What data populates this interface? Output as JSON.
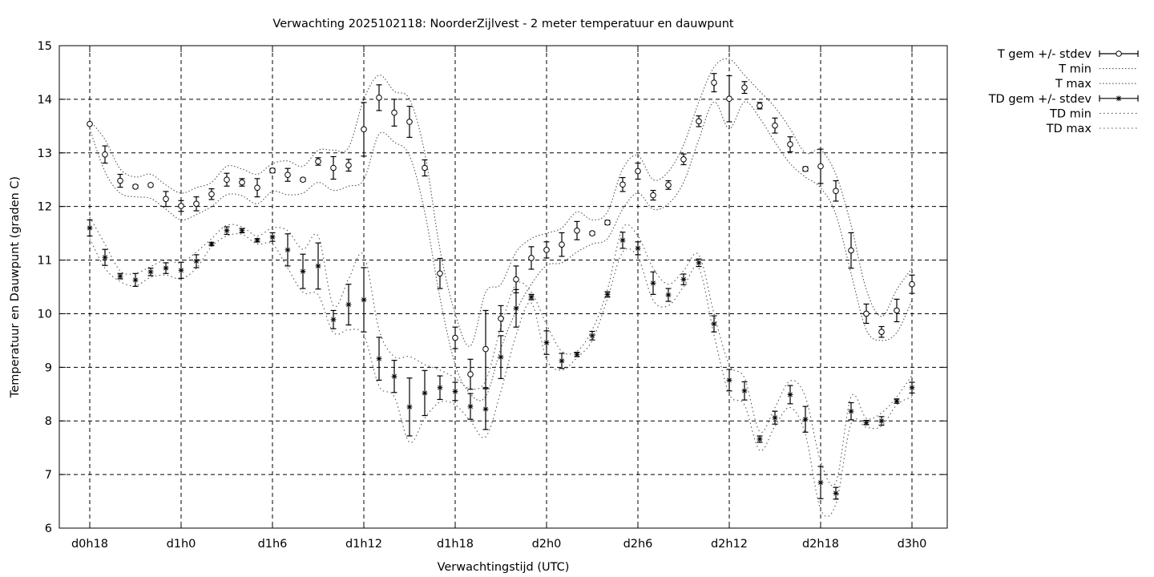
{
  "chart_data": {
    "type": "line",
    "title": "Verwachting 2025102118: NoorderZijlvest - 2 meter temperatuur en dauwpunt",
    "xlabel": "Verwachtingstijd (UTC)",
    "ylabel": "Temperatuur en Dauwpunt (graden C)",
    "xlim": [
      0,
      56.5
    ],
    "ylim": [
      6,
      15
    ],
    "x_unit": "hours since d0h18",
    "x_ticks": [
      {
        "x": 0,
        "label": "d0h18"
      },
      {
        "x": 6,
        "label": "d1h0"
      },
      {
        "x": 12,
        "label": "d1h6"
      },
      {
        "x": 18,
        "label": "d1h12"
      },
      {
        "x": 24,
        "label": "d1h18"
      },
      {
        "x": 30,
        "label": "d2h0"
      },
      {
        "x": 36,
        "label": "d2h6"
      },
      {
        "x": 42,
        "label": "d2h12"
      },
      {
        "x": 48,
        "label": "d2h18"
      },
      {
        "x": 54,
        "label": "d3h0"
      }
    ],
    "y_ticks": [
      6,
      7,
      8,
      9,
      10,
      11,
      12,
      13,
      14,
      15
    ],
    "grid": true,
    "legend_position": "outside-top-right",
    "x": [
      0,
      1,
      2,
      3,
      4,
      5,
      6,
      7,
      8,
      9,
      10,
      11,
      12,
      13,
      14,
      15,
      16,
      17,
      18,
      19,
      20,
      21,
      22,
      23,
      24,
      25,
      26,
      27,
      28,
      29,
      30,
      31,
      32,
      33,
      34,
      35,
      36,
      37,
      38,
      39,
      40,
      41,
      42,
      43,
      44,
      45,
      46,
      47,
      48,
      49,
      50,
      51,
      52,
      53,
      54
    ],
    "series": [
      {
        "name": "T gem +/- stdev",
        "marker": "open-circle",
        "mean": [
          13.54,
          12.97,
          12.48,
          12.37,
          12.4,
          12.14,
          12.01,
          12.05,
          12.23,
          12.5,
          12.45,
          12.35,
          12.67,
          12.59,
          12.5,
          12.84,
          12.72,
          12.77,
          13.44,
          14.03,
          13.75,
          13.58,
          12.72,
          10.75,
          9.55,
          8.87,
          9.34,
          9.91,
          10.64,
          11.04,
          11.19,
          11.29,
          11.55,
          11.5,
          11.7,
          12.41,
          12.66,
          12.21,
          12.4,
          12.88,
          13.59,
          14.31,
          14.01,
          14.22,
          13.88,
          13.51,
          13.16,
          12.7,
          12.75,
          12.29,
          11.18,
          10.0,
          9.66,
          10.06,
          10.55
        ],
        "stdev": [
          0.02,
          0.16,
          0.12,
          0.03,
          0.02,
          0.14,
          0.1,
          0.13,
          0.1,
          0.12,
          0.07,
          0.17,
          0.04,
          0.12,
          0.03,
          0.07,
          0.21,
          0.11,
          0.5,
          0.24,
          0.25,
          0.29,
          0.15,
          0.28,
          0.2,
          0.28,
          0.72,
          0.24,
          0.25,
          0.21,
          0.15,
          0.22,
          0.17,
          0.03,
          0.04,
          0.13,
          0.15,
          0.09,
          0.08,
          0.1,
          0.1,
          0.17,
          0.43,
          0.11,
          0.06,
          0.14,
          0.14,
          0.04,
          0.32,
          0.19,
          0.33,
          0.18,
          0.1,
          0.21,
          0.17
        ],
        "color": "#000000"
      },
      {
        "name": "T min",
        "style": "dotted",
        "values": [
          13.45,
          12.65,
          12.25,
          12.18,
          12.15,
          11.95,
          11.75,
          11.85,
          12.0,
          12.22,
          12.2,
          12.05,
          12.28,
          12.22,
          12.25,
          12.45,
          12.3,
          12.38,
          12.5,
          13.35,
          13.2,
          12.95,
          11.9,
          10.3,
          9.05,
          8.5,
          8.45,
          9.35,
          10.05,
          10.55,
          10.9,
          10.95,
          11.15,
          11.3,
          11.4,
          11.95,
          12.25,
          11.95,
          12.05,
          12.45,
          13.25,
          13.95,
          13.45,
          13.95,
          13.65,
          13.2,
          12.8,
          12.55,
          12.35,
          11.85,
          10.75,
          9.7,
          9.5,
          9.65,
          10.25
        ],
        "color": "#555555"
      },
      {
        "name": "T max",
        "style": "dotted",
        "values": [
          13.6,
          13.25,
          12.7,
          12.55,
          12.6,
          12.4,
          12.25,
          12.35,
          12.45,
          12.75,
          12.7,
          12.6,
          12.8,
          12.85,
          12.75,
          13.05,
          13.05,
          13.1,
          14.0,
          14.45,
          14.15,
          14.0,
          13.0,
          11.2,
          10.0,
          9.4,
          10.4,
          10.55,
          11.15,
          11.4,
          11.5,
          11.6,
          11.9,
          11.75,
          11.9,
          12.7,
          12.95,
          12.5,
          12.65,
          13.15,
          13.95,
          14.6,
          14.75,
          14.45,
          14.15,
          13.85,
          13.45,
          13.0,
          13.05,
          12.6,
          11.65,
          10.45,
          9.95,
          10.45,
          10.85
        ],
        "color": "#555555"
      },
      {
        "name": "TD gem +/- stdev",
        "marker": "star",
        "mean": [
          11.6,
          11.05,
          10.7,
          10.63,
          10.78,
          10.85,
          10.81,
          10.98,
          11.3,
          11.55,
          11.55,
          11.37,
          11.43,
          11.19,
          10.79,
          10.89,
          9.89,
          10.17,
          10.26,
          9.16,
          8.83,
          8.26,
          8.52,
          8.62,
          8.55,
          8.27,
          8.22,
          9.19,
          10.1,
          10.31,
          9.46,
          9.12,
          9.24,
          9.59,
          10.36,
          11.37,
          11.22,
          10.57,
          10.35,
          10.64,
          10.95,
          9.81,
          8.76,
          8.56,
          7.66,
          8.06,
          8.49,
          8.03,
          6.85,
          6.65,
          8.18,
          7.97,
          8.0,
          8.37,
          8.62
        ],
        "stdev": [
          0.15,
          0.15,
          0.05,
          0.12,
          0.07,
          0.1,
          0.15,
          0.12,
          0.03,
          0.07,
          0.04,
          0.03,
          0.08,
          0.3,
          0.32,
          0.43,
          0.17,
          0.38,
          0.6,
          0.4,
          0.3,
          0.54,
          0.42,
          0.22,
          0.17,
          0.24,
          0.38,
          0.4,
          0.35,
          0.05,
          0.22,
          0.14,
          0.04,
          0.08,
          0.05,
          0.15,
          0.12,
          0.21,
          0.12,
          0.1,
          0.07,
          0.15,
          0.2,
          0.17,
          0.06,
          0.12,
          0.17,
          0.24,
          0.3,
          0.11,
          0.16,
          0.04,
          0.08,
          0.04,
          0.1
        ],
        "color": "#000000"
      },
      {
        "name": "TD min",
        "style": "dotted",
        "values": [
          11.4,
          10.85,
          10.6,
          10.52,
          10.68,
          10.72,
          10.65,
          10.85,
          11.25,
          11.45,
          11.48,
          11.3,
          11.3,
          10.85,
          10.4,
          10.35,
          9.65,
          9.7,
          9.6,
          8.65,
          8.45,
          7.6,
          8.05,
          8.35,
          8.3,
          8.0,
          7.7,
          8.55,
          9.6,
          10.2,
          9.15,
          8.95,
          9.18,
          9.5,
          10.28,
          11.15,
          11.05,
          10.25,
          10.15,
          10.5,
          10.85,
          9.6,
          8.5,
          8.3,
          7.45,
          7.9,
          8.25,
          7.75,
          6.35,
          6.45,
          7.95,
          7.88,
          7.9,
          8.3,
          8.45
        ],
        "color": "#555555"
      },
      {
        "name": "TD max",
        "style": "dotted",
        "values": [
          11.8,
          11.3,
          10.8,
          10.75,
          10.88,
          11.0,
          10.95,
          11.15,
          11.4,
          11.65,
          11.62,
          11.45,
          11.6,
          11.55,
          11.2,
          11.45,
          10.15,
          10.65,
          11.1,
          9.7,
          9.2,
          9.2,
          9.05,
          8.95,
          8.8,
          8.6,
          8.75,
          9.75,
          10.55,
          10.4,
          9.8,
          9.3,
          9.3,
          9.7,
          10.45,
          11.6,
          11.45,
          10.85,
          10.55,
          10.8,
          11.1,
          10.0,
          9.05,
          8.8,
          7.8,
          8.25,
          8.75,
          8.45,
          7.25,
          6.85,
          8.45,
          8.05,
          8.15,
          8.45,
          8.85
        ],
        "color": "#555555"
      }
    ]
  }
}
